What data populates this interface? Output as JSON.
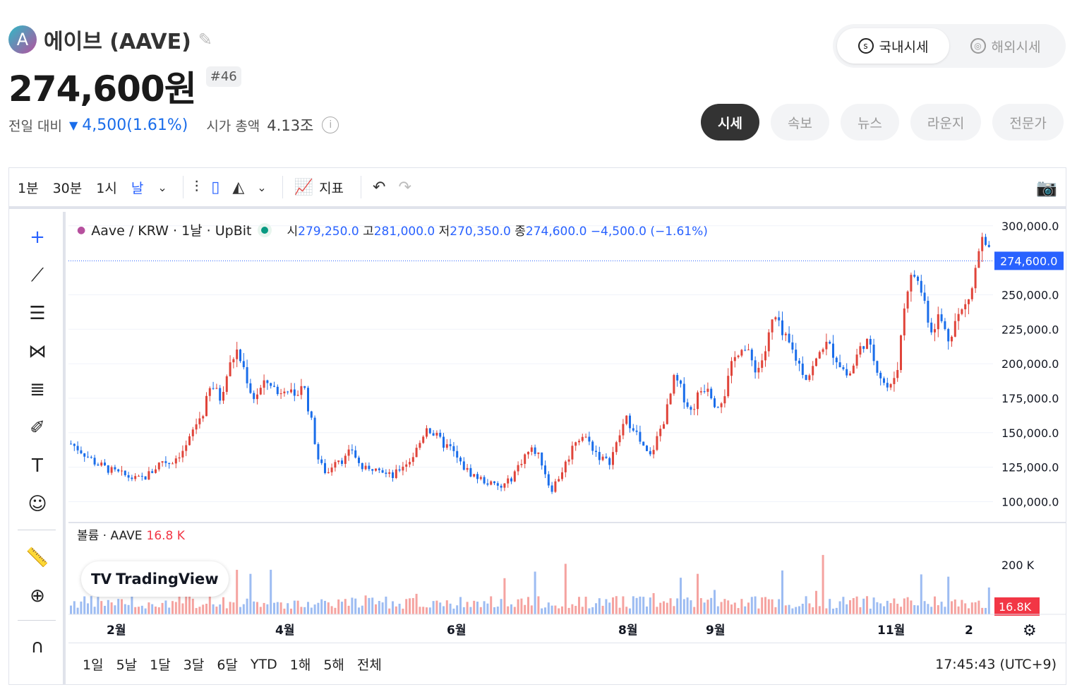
{
  "coin": {
    "name": "에이브 (AAVE)",
    "logo_letter": "A",
    "price": "274,600원",
    "rank": "#46",
    "change_label": "전일 대비",
    "change_value": "4,500(1.61%)",
    "mcap_label": "시가 총액",
    "mcap_value": "4.13조"
  },
  "market_toggle": [
    {
      "label": "국내시세",
      "icon": "domestic-icon",
      "active": true
    },
    {
      "label": "해외시세",
      "icon": "globe-icon",
      "active": false
    }
  ],
  "tabs": [
    "시세",
    "속보",
    "뉴스",
    "라운지",
    "전문가"
  ],
  "toolbar": {
    "intervals": [
      "1분",
      "30분",
      "1시",
      "날"
    ],
    "indicators_label": "지표"
  },
  "legend": {
    "symbol": "Aave / KRW · 1날 · UpBit",
    "o_label": "시",
    "o": "279,250.0",
    "h_label": "고",
    "h": "281,000.0",
    "l_label": "저",
    "l": "270,350.0",
    "c_label": "종",
    "c": "274,600.0",
    "chg": "−4,500.0 (−1.61%)"
  },
  "volume_legend": {
    "label": "볼륨 · AAVE",
    "value": "16.8 K"
  },
  "tradingview_label": "TradingView",
  "ranges": [
    "1일",
    "5날",
    "1달",
    "3달",
    "6달",
    "YTD",
    "1해",
    "5해",
    "전체"
  ],
  "clock": "17:45:43 (UTC+9)",
  "colors": {
    "up": "#e0443a",
    "down": "#1a6dea",
    "accent": "#2962ff"
  },
  "chart_data": {
    "type": "candlestick",
    "y_ticks": [
      "300,000.0",
      "275,000.0",
      "250,000.0",
      "225,000.0",
      "200,000.0",
      "175,000.0",
      "150,000.0",
      "125,000.0",
      "100,000.0"
    ],
    "ylim": [
      90000,
      305000
    ],
    "x_labels": [
      "2월",
      "4월",
      "6월",
      "8월",
      "9월",
      "11월",
      "2"
    ],
    "last_price_label": "274,600.0",
    "volume_tick": "200 K",
    "volume_last_label": "16.8K",
    "close_series": [
      142000,
      138000,
      133000,
      128000,
      125000,
      122000,
      120000,
      118000,
      116000,
      118000,
      123000,
      130000,
      128000,
      134000,
      140000,
      155000,
      165000,
      185000,
      175000,
      195000,
      210000,
      195000,
      175000,
      182000,
      188000,
      178000,
      186000,
      172000,
      188000,
      160000,
      128000,
      120000,
      132000,
      130000,
      138000,
      125000,
      122000,
      128000,
      120000,
      118000,
      126000,
      130000,
      140000,
      155000,
      148000,
      142000,
      138000,
      128000,
      122000,
      118000,
      115000,
      112000,
      110000,
      115000,
      125000,
      135000,
      138000,
      128000,
      108000,
      118000,
      130000,
      145000,
      148000,
      140000,
      132000,
      128000,
      142000,
      160000,
      155000,
      140000,
      132000,
      148000,
      165000,
      190000,
      178000,
      165000,
      180000,
      185000,
      170000,
      178000,
      200000,
      215000,
      205000,
      195000,
      210000,
      235000,
      220000,
      212000,
      200000,
      190000,
      200000,
      215000,
      210000,
      200000,
      190000,
      205000,
      218000,
      205000,
      190000,
      180000,
      200000,
      255000,
      265000,
      250000,
      225000,
      235000,
      218000,
      232000,
      240000,
      255000,
      290000,
      278000
    ]
  }
}
